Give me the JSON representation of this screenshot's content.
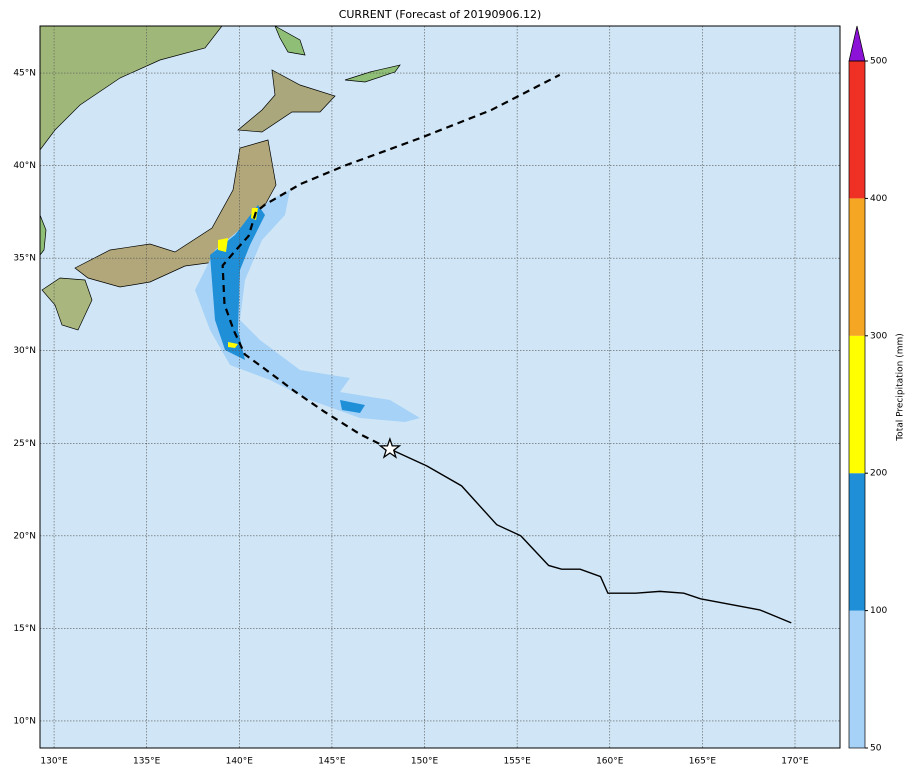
{
  "map": {
    "title": "CURRENT (Forecast of 20190906.12)",
    "xlim": [
      129.24,
      172.43
    ],
    "ylim": [
      8.54,
      47.54
    ],
    "xticks": [
      {
        "value": 130,
        "label": "130°E"
      },
      {
        "value": 135,
        "label": "135°E"
      },
      {
        "value": 140,
        "label": "140°E"
      },
      {
        "value": 145,
        "label": "145°E"
      },
      {
        "value": 150,
        "label": "150°E"
      },
      {
        "value": 155,
        "label": "155°E"
      },
      {
        "value": 160,
        "label": "160°E"
      },
      {
        "value": 165,
        "label": "165°E"
      },
      {
        "value": 170,
        "label": "170°E"
      }
    ],
    "yticks": [
      {
        "value": 10,
        "label": "10°N"
      },
      {
        "value": 15,
        "label": "15°N"
      },
      {
        "value": 20,
        "label": "20°N"
      },
      {
        "value": 25,
        "label": "25°N"
      },
      {
        "value": 30,
        "label": "30°N"
      },
      {
        "value": 35,
        "label": "35°N"
      },
      {
        "value": 40,
        "label": "40°N"
      },
      {
        "value": 45,
        "label": "45°N"
      }
    ],
    "grid": true,
    "observed_track": {
      "color": "#000000",
      "lon": [
        148.13,
        150.13,
        152.0,
        153.9,
        155.2,
        156.7,
        157.4,
        158.4,
        159.5,
        159.9,
        161.4,
        162.7,
        164.0,
        164.9,
        168.1,
        169.8
      ],
      "lat": [
        24.69,
        23.77,
        22.7,
        20.6,
        20.0,
        18.4,
        18.2,
        18.2,
        17.8,
        16.9,
        16.9,
        17.0,
        16.9,
        16.6,
        16.0,
        15.3
      ]
    },
    "forecast_track": {
      "color": "#000000",
      "lon": [
        148.13,
        146.5,
        144.6,
        143.0,
        141.4,
        140.3,
        139.7,
        139.2,
        139.1,
        139.7,
        140.5,
        140.9,
        141.4,
        143.3,
        145.7,
        147.9,
        149.8,
        153.6,
        157.3
      ],
      "lat": [
        24.69,
        25.5,
        26.7,
        27.8,
        29.0,
        29.8,
        31.1,
        32.5,
        34.6,
        35.3,
        36.2,
        37.5,
        37.9,
        39.0,
        40.0,
        40.8,
        41.5,
        43.0,
        44.9
      ]
    },
    "colorbar": {
      "label": "Total Precipitation (mm)",
      "levels": [
        50,
        100,
        200,
        300,
        400,
        500
      ],
      "colors": [
        "#a6d2f7",
        "#1f8fd8",
        "#ffff00",
        "#f5a623",
        "#ee3124"
      ],
      "extend_color": "#8b12d6"
    }
  }
}
